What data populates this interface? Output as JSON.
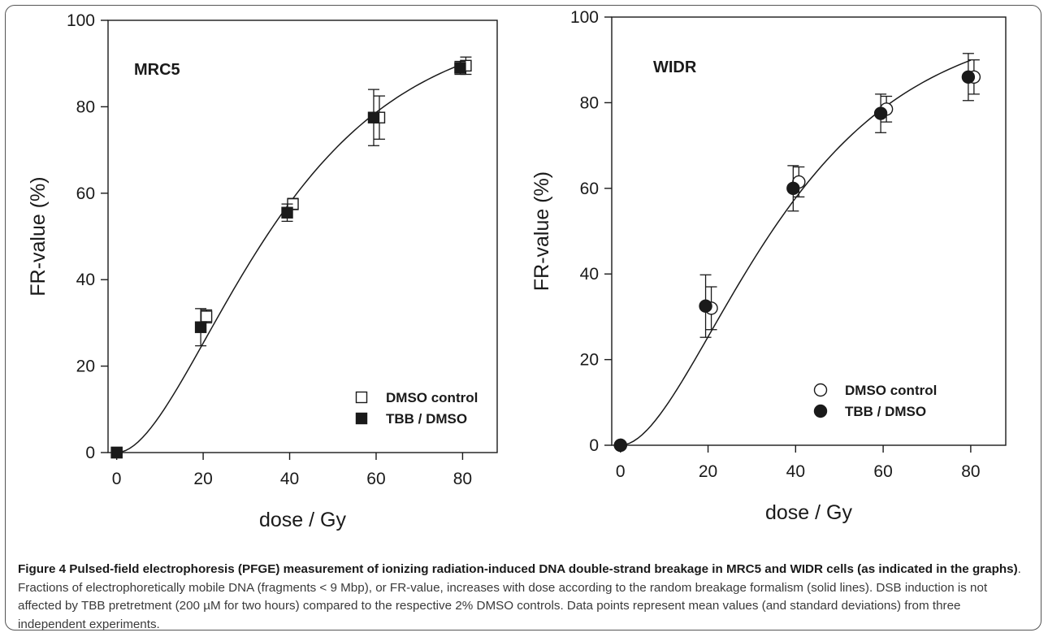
{
  "chart_data": [
    {
      "type": "scatter",
      "panel_label": "MRC5",
      "xlabel": "dose / Gy",
      "ylabel": "FR-value (%)",
      "xlim": [
        -2,
        88
      ],
      "ylim": [
        0,
        100
      ],
      "xticks": [
        0,
        20,
        40,
        60,
        80
      ],
      "yticks": [
        0,
        20,
        40,
        60,
        80,
        100
      ],
      "legend_position": "bottom-right",
      "marker_shape": "square",
      "curve": "solid",
      "series": [
        {
          "name": "DMSO control",
          "marker": "open",
          "x": [
            0,
            20,
            40,
            60,
            80
          ],
          "y": [
            0,
            31.5,
            57.5,
            77.5,
            89.5
          ],
          "err": [
            0,
            1.5,
            1.3,
            5.0,
            2.0
          ]
        },
        {
          "name": "TBB / DMSO",
          "marker": "filled",
          "x": [
            0,
            20,
            40,
            60,
            80
          ],
          "y": [
            0,
            29.0,
            55.5,
            77.5,
            89.0
          ],
          "err": [
            0,
            4.3,
            2.0,
            6.5,
            1.5
          ]
        }
      ]
    },
    {
      "type": "scatter",
      "panel_label": "WIDR",
      "xlabel": "dose / Gy",
      "ylabel": "FR-value (%)",
      "xlim": [
        -2,
        88
      ],
      "ylim": [
        0,
        100
      ],
      "xticks": [
        0,
        20,
        40,
        60,
        80
      ],
      "yticks": [
        0,
        20,
        40,
        60,
        80,
        100
      ],
      "legend_position": "bottom-right",
      "marker_shape": "circle",
      "curve": "solid",
      "series": [
        {
          "name": "DMSO control",
          "marker": "open",
          "x": [
            0,
            20,
            40,
            60,
            80
          ],
          "y": [
            0,
            32.0,
            61.5,
            78.5,
            86.0
          ],
          "err": [
            0,
            5.0,
            3.5,
            3.0,
            4.0
          ]
        },
        {
          "name": "TBB / DMSO",
          "marker": "filled",
          "x": [
            0,
            20,
            40,
            60,
            80
          ],
          "y": [
            0,
            32.5,
            60.0,
            77.5,
            86.0
          ],
          "err": [
            0,
            7.3,
            5.3,
            4.5,
            5.5
          ]
        }
      ]
    }
  ],
  "caption": {
    "title": "Figure 4 Pulsed-field electrophoresis (PFGE) measurement of ionizing radiation-induced DNA double-strand breakage in MRC5 and WIDR cells (as indicated in the graphs)",
    "text": ". Fractions of electrophoretically mobile DNA (fragments < 9 Mbp), or FR-value, increases with dose according to the random breakage formalism (solid lines). DSB induction is not affected by TBB pretretment (200 µM for two hours) compared to the respective 2% DMSO controls. Data points represent mean values (and standard deviations) from three independent experiments."
  },
  "colors": {
    "ink": "#1a1a1a",
    "frame": "#555555",
    "caption_text": "#3a3a3a"
  }
}
